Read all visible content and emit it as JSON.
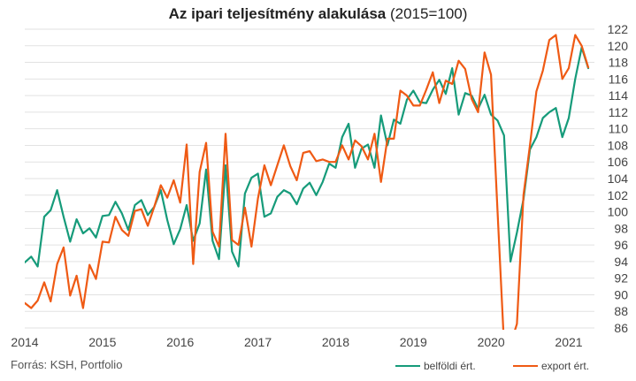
{
  "title_bold": "Az ipari teljesítmény alakulása",
  "title_rest": "(2015=100)",
  "source": "Forrás: KSH, Portfolio",
  "colors": {
    "belfoldi": "#169b7a",
    "export": "#ef5a14",
    "grid": "#e2e2e2",
    "axis_text": "#444444"
  },
  "chart_data": {
    "type": "line",
    "title": "Az ipari teljesítmény alakulása (2015=100)",
    "xlabel": "",
    "ylabel": "",
    "ylim": [
      86,
      122
    ],
    "yticks": [
      86,
      88,
      90,
      92,
      94,
      96,
      98,
      100,
      102,
      104,
      106,
      108,
      110,
      112,
      114,
      116,
      118,
      120,
      122
    ],
    "xlim": [
      2014.0,
      2021.33
    ],
    "xticks": [
      2014,
      2015,
      2016,
      2017,
      2018,
      2019,
      2020,
      2021
    ],
    "grid": true,
    "legend": "bottom-right",
    "frequency": "monthly",
    "start": "2014-01",
    "series": [
      {
        "name": "belföldi ért.",
        "color": "#169b7a",
        "values": [
          93.9,
          94.6,
          93.4,
          99.4,
          100.2,
          102.6,
          99.4,
          96.4,
          99.1,
          97.4,
          98.0,
          96.9,
          99.5,
          99.6,
          101.2,
          99.8,
          97.8,
          100.8,
          101.4,
          99.6,
          100.6,
          102.6,
          99.0,
          96.1,
          97.9,
          100.8,
          96.5,
          98.6,
          105.1,
          96.5,
          94.3,
          105.6,
          95.2,
          93.4,
          102.2,
          104.1,
          104.6,
          99.4,
          99.8,
          101.8,
          102.6,
          102.2,
          100.9,
          102.8,
          103.5,
          102.0,
          103.6,
          105.8,
          105.3,
          109.0,
          110.6,
          105.3,
          107.6,
          108.1,
          105.3,
          111.6,
          108.0,
          111.1,
          110.6,
          113.5,
          114.6,
          113.2,
          113.1,
          114.7,
          115.9,
          114.2,
          117.3,
          111.7,
          114.3,
          114.0,
          112.4,
          114.1,
          111.7,
          111.0,
          109.2,
          94.0,
          97.5,
          101.5,
          107.5,
          109.0,
          111.3,
          112.0,
          112.5,
          109.0,
          111.3,
          116.0,
          119.8,
          117.3
        ]
      },
      {
        "name": "export ért.",
        "color": "#ef5a14",
        "values": [
          89.0,
          88.4,
          89.3,
          91.5,
          89.2,
          93.7,
          95.7,
          89.9,
          92.3,
          88.4,
          93.6,
          91.9,
          96.4,
          96.3,
          99.4,
          97.8,
          97.1,
          100.1,
          100.3,
          98.3,
          100.6,
          103.2,
          101.7,
          103.8,
          101.1,
          108.1,
          93.7,
          104.8,
          108.3,
          97.6,
          95.8,
          109.4,
          96.6,
          96.0,
          100.5,
          95.8,
          101.6,
          105.6,
          103.2,
          105.6,
          108.0,
          105.5,
          103.8,
          107.1,
          107.3,
          106.1,
          106.3,
          106.0,
          106.0,
          108.0,
          106.3,
          108.6,
          107.9,
          106.3,
          109.4,
          103.6,
          108.8,
          108.8,
          114.6,
          114.0,
          112.8,
          112.8,
          114.7,
          116.8,
          113.1,
          115.8,
          115.4,
          118.2,
          117.2,
          113.6,
          112.0,
          119.2,
          116.5,
          100.0,
          84.0,
          84.0,
          86.5,
          102.0,
          108.0,
          114.5,
          117.0,
          120.7,
          121.3,
          116.0,
          117.3,
          121.3,
          120.0,
          117.4
        ]
      }
    ]
  }
}
